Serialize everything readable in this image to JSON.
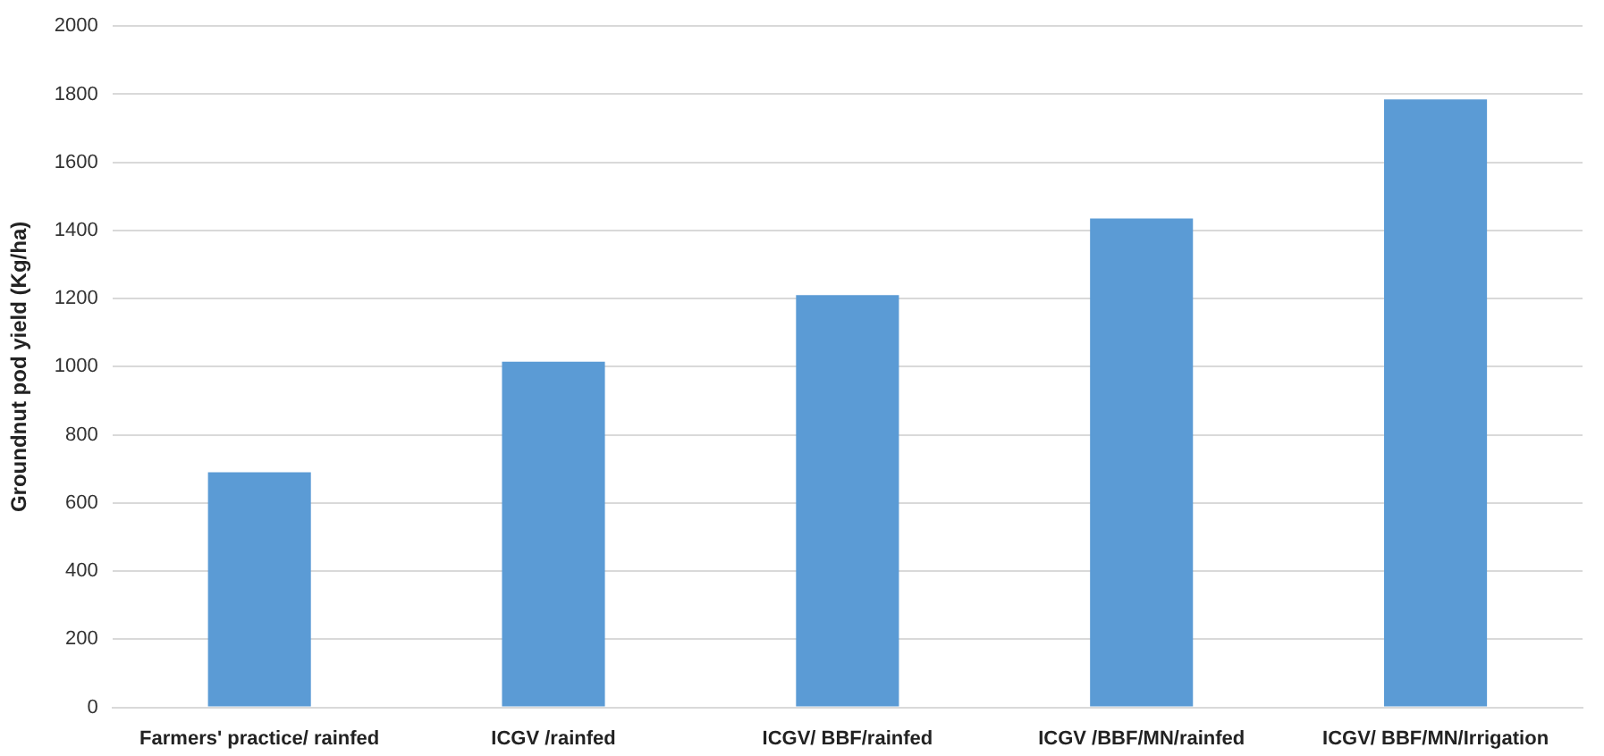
{
  "chart_data": {
    "type": "bar",
    "ylabel": "Groundnut pod yield (Kg/ha)",
    "categories": [
      "Farmers' practice/ rainfed",
      "ICGV /rainfed",
      "ICGV/ BBF/rainfed",
      "ICGV /BBF/MN/rainfed",
      "ICGV/ BBF/MN/Irrigation"
    ],
    "values": [
      690,
      1015,
      1210,
      1435,
      1785
    ],
    "color": "#5b9bd5",
    "ylim": [
      0,
      2000
    ],
    "yticks": [
      0,
      200,
      400,
      600,
      800,
      1000,
      1200,
      1400,
      1600,
      1800,
      2000
    ],
    "grid": "y",
    "legend": false
  }
}
